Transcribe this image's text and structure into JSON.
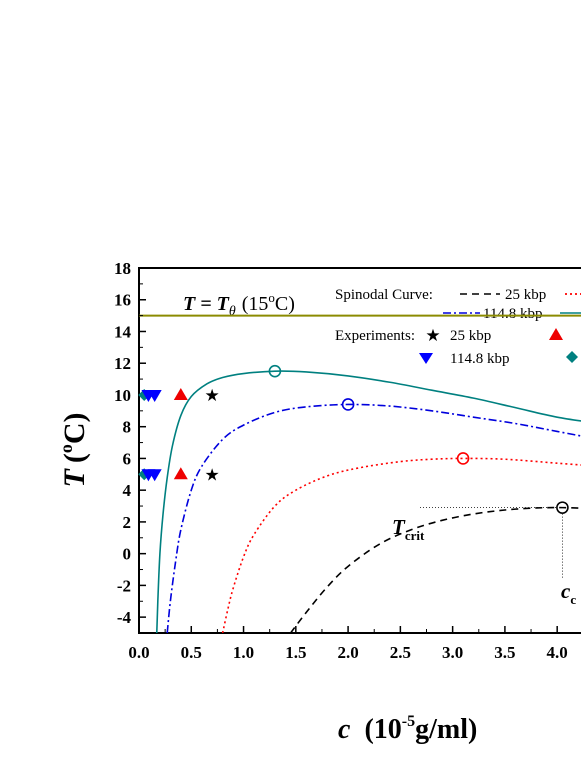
{
  "chart_data": {
    "type": "line",
    "xlabel": {
      "var": "c",
      "unit": "(10",
      "sup": "-5",
      "rest": "g/ml)"
    },
    "ylabel": {
      "var": "T",
      "open": "(",
      "sup": "o",
      "rest": "C)"
    },
    "xlim": [
      0.0,
      4.4
    ],
    "ylim": [
      -5,
      18
    ],
    "xticks": [
      "0.0",
      "0.5",
      "1.0",
      "1.5",
      "2.0",
      "2.5",
      "3.0",
      "3.5",
      "4.0"
    ],
    "yticks": [
      "-4",
      "-2",
      "0",
      "2",
      "4",
      "6",
      "8",
      "10",
      "12",
      "14",
      "16",
      "18"
    ],
    "theta_line": {
      "y": 15.0,
      "color": "#8b8b00"
    },
    "theta_label": {
      "lhs": "T = T",
      "sub": "θ",
      "paren_open": "(15",
      "sup": "o",
      "paren_close": "C)"
    },
    "legend": {
      "spinodal_title": "Spinodal Curve:",
      "spinodal_entries": [
        "25 kbp",
        "114.8 kbp"
      ],
      "experiments_title": "Experiments:",
      "experiment_entries": [
        "25 kbp",
        "114.8 kbp"
      ]
    },
    "series": [
      {
        "name": "25 kbp",
        "color": "#000000",
        "dash": "7,5",
        "peak": [
          4.05,
          2.9
        ],
        "x": [
          1.45,
          1.6,
          1.8,
          2.0,
          2.3,
          2.6,
          2.9,
          3.2,
          3.5,
          3.8,
          4.05,
          4.3,
          4.4
        ],
        "y": [
          -5.0,
          -3.7,
          -2.1,
          -0.8,
          0.6,
          1.5,
          2.1,
          2.5,
          2.75,
          2.88,
          2.9,
          2.85,
          2.8
        ]
      },
      {
        "name": "",
        "color": "#ff0000",
        "dash": "2,3",
        "peak": [
          3.1,
          6.0
        ],
        "x": [
          0.8,
          0.85,
          0.9,
          1.0,
          1.1,
          1.3,
          1.5,
          1.8,
          2.1,
          2.5,
          2.8,
          3.1,
          3.5,
          4.0,
          4.4
        ],
        "y": [
          -5.0,
          -3.5,
          -2.2,
          -0.2,
          1.2,
          3.0,
          4.0,
          4.9,
          5.4,
          5.8,
          5.95,
          6.0,
          5.95,
          5.7,
          5.5
        ]
      },
      {
        "name": "114.8 kbp",
        "color": "#0000dd",
        "dash": "8,3,2,3",
        "peak": [
          2.0,
          9.4
        ],
        "x": [
          0.27,
          0.3,
          0.35,
          0.4,
          0.5,
          0.6,
          0.8,
          1.0,
          1.3,
          1.6,
          2.0,
          2.4,
          2.8,
          3.2,
          3.6,
          4.0,
          4.4
        ],
        "y": [
          -5.0,
          -3.0,
          -0.5,
          1.5,
          4.0,
          5.5,
          7.2,
          8.1,
          8.9,
          9.25,
          9.4,
          9.3,
          9.0,
          8.6,
          8.2,
          7.7,
          7.2
        ]
      },
      {
        "name": "",
        "color": "#008080",
        "dash": "",
        "peak": [
          1.3,
          11.5
        ],
        "x": [
          0.17,
          0.18,
          0.2,
          0.23,
          0.27,
          0.32,
          0.4,
          0.5,
          0.65,
          0.8,
          1.0,
          1.3,
          1.6,
          2.0,
          2.4,
          2.8,
          3.2,
          3.6,
          4.0,
          4.4
        ],
        "y": [
          -5.0,
          -3.0,
          0.0,
          2.5,
          4.8,
          6.8,
          8.7,
          9.9,
          10.7,
          11.1,
          11.35,
          11.5,
          11.45,
          11.2,
          10.8,
          10.3,
          9.8,
          9.2,
          8.6,
          8.2
        ]
      }
    ],
    "experiments": [
      {
        "series": "25 kbp",
        "marker": "star",
        "color": "#000000",
        "points": [
          [
            0.7,
            10.0
          ],
          [
            0.7,
            5.0
          ]
        ]
      },
      {
        "series": "",
        "marker": "triangle-up",
        "color": "#ee0000",
        "points": [
          [
            0.4,
            10.0
          ],
          [
            0.4,
            5.0
          ]
        ]
      },
      {
        "series": "114.8 kbp",
        "marker": "triangle-down",
        "color": "#0000ff",
        "points": [
          [
            0.15,
            10.0
          ],
          [
            0.15,
            5.0
          ]
        ]
      },
      {
        "series": "",
        "marker": "diamond",
        "color": "#008080",
        "points": [
          [
            0.05,
            10.0
          ],
          [
            0.05,
            5.0
          ]
        ]
      }
    ],
    "crit_annotation": {
      "t_label": "T",
      "t_sub": "crit",
      "c_label": "c",
      "c_sub": "c",
      "point": [
        4.05,
        2.9
      ]
    }
  }
}
